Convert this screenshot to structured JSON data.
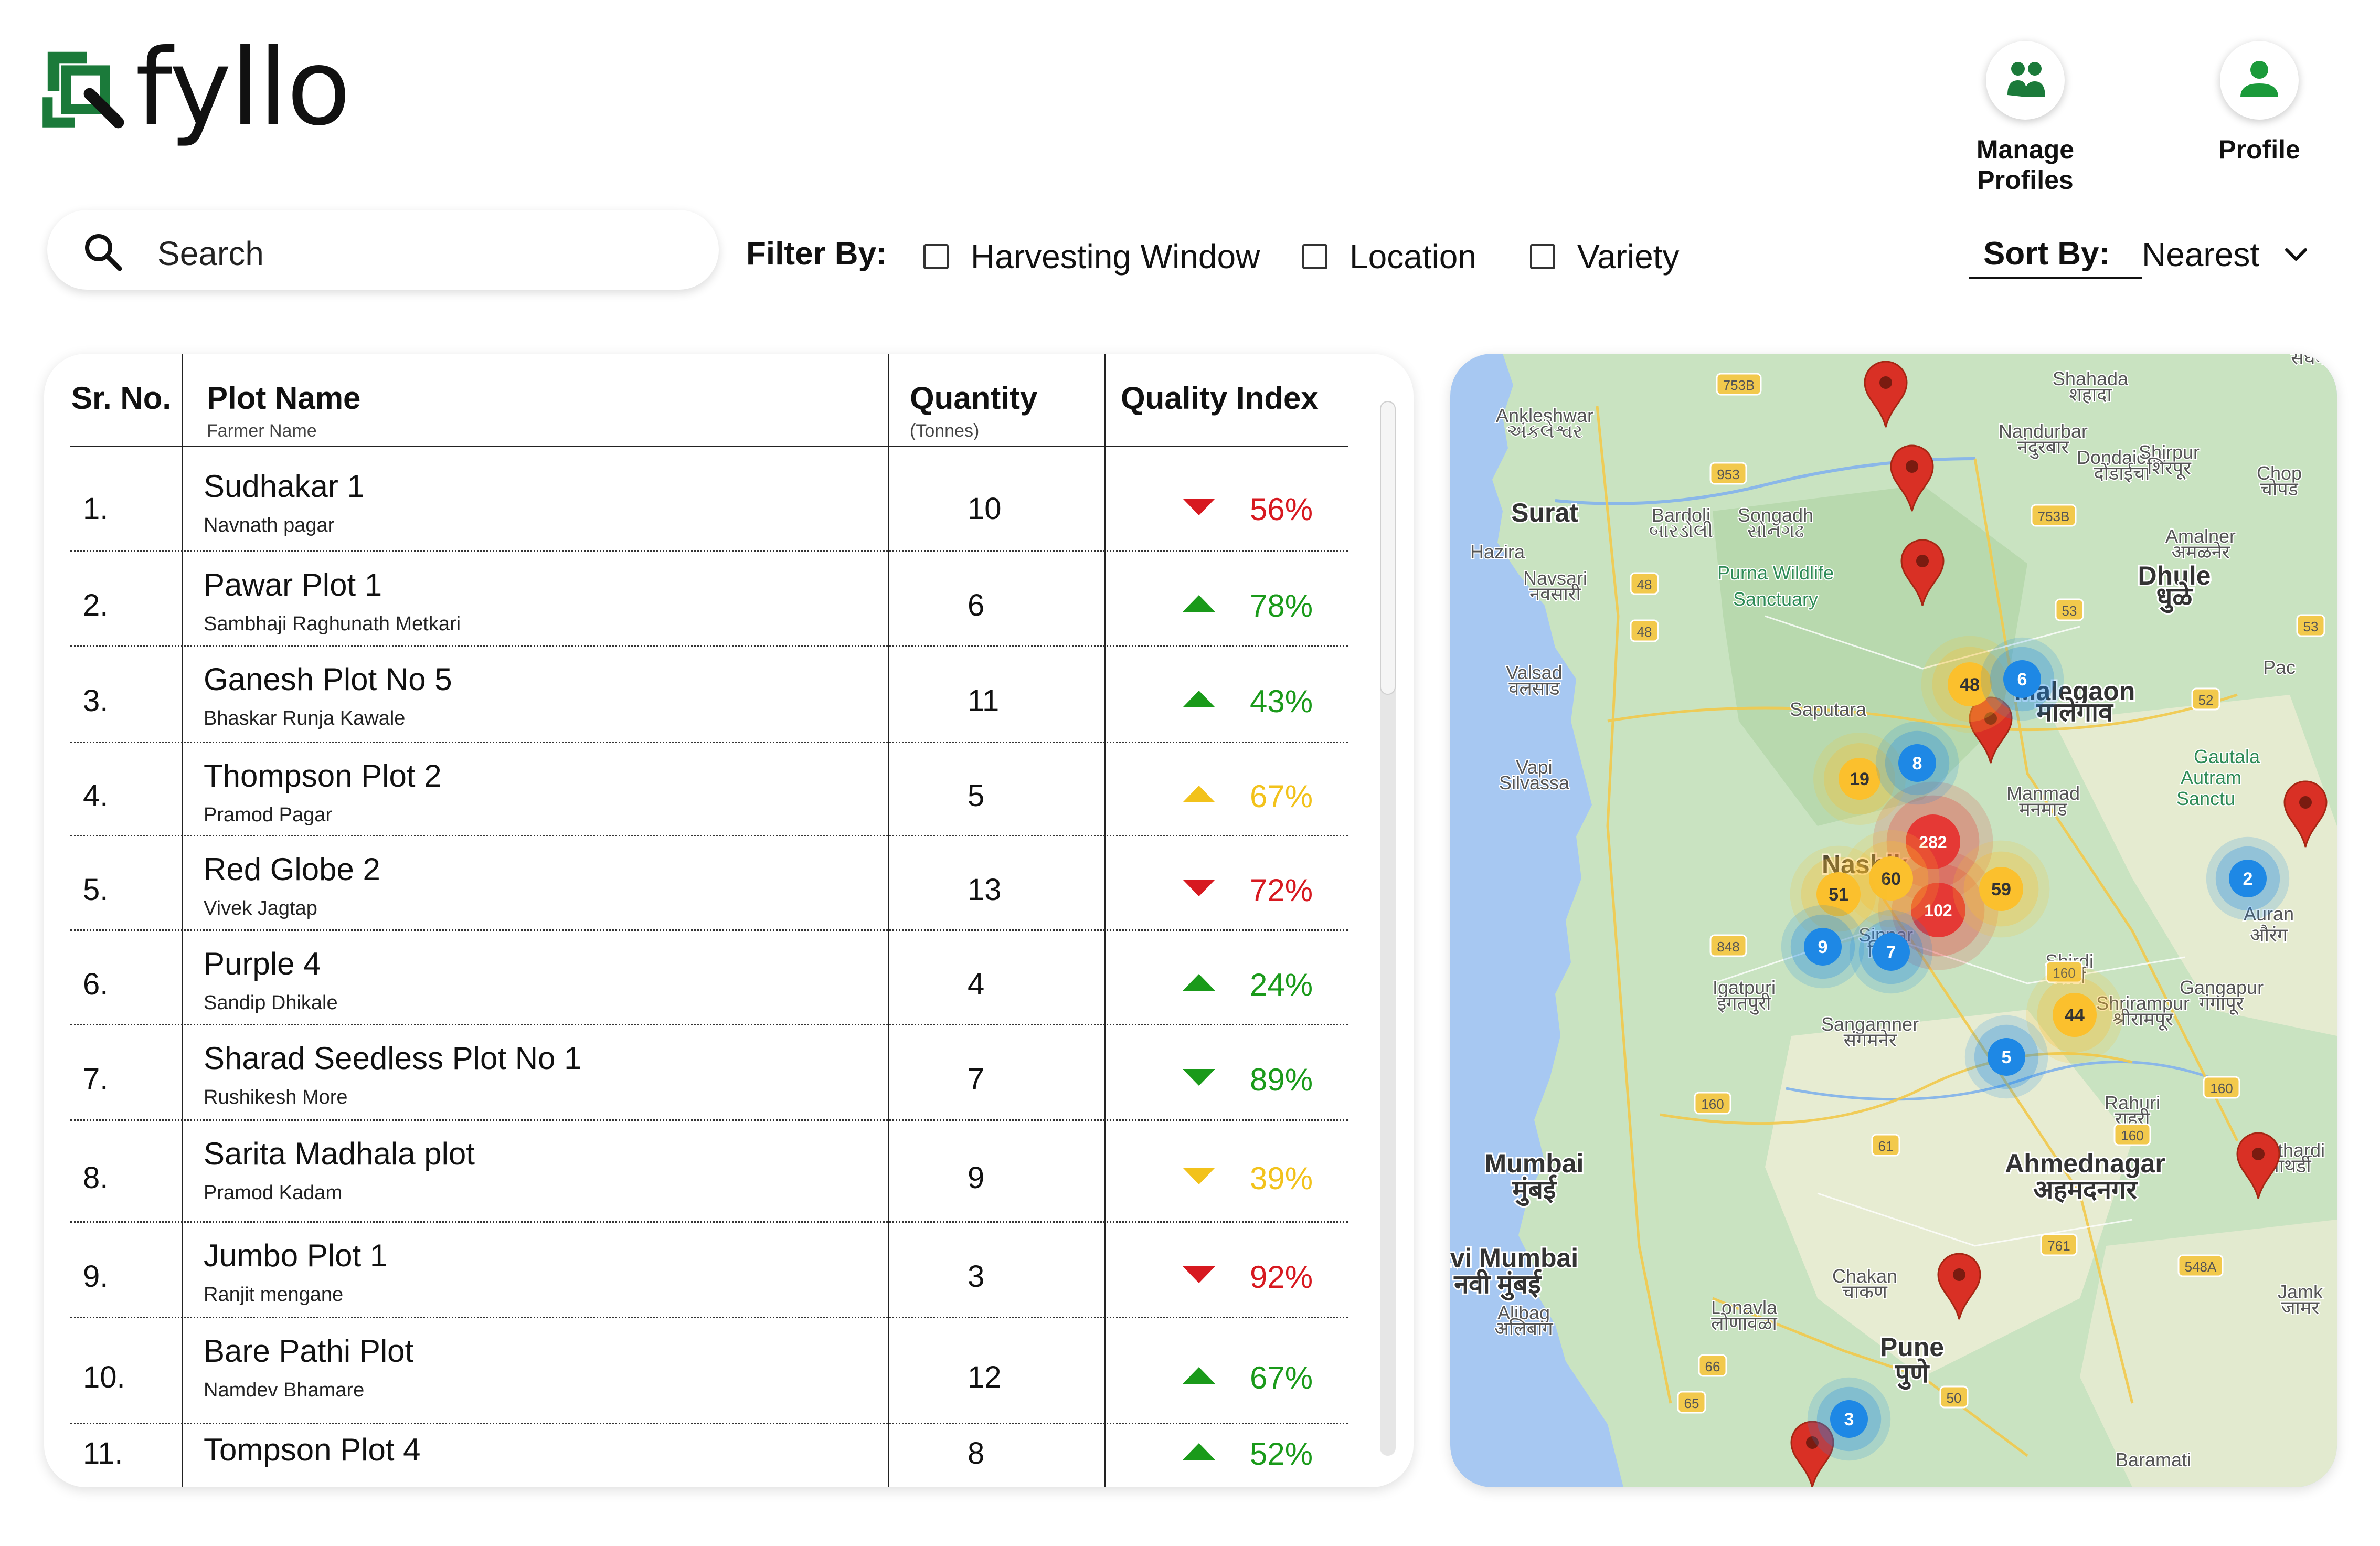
{
  "app": {
    "brand": "fyllo"
  },
  "header": {
    "manage_profiles_label": "Manage Profiles",
    "profile_label": "Profile"
  },
  "toolbar": {
    "search_placeholder": "Search",
    "filter_label": "Filter By:",
    "filters": [
      "Harvesting Window",
      "Location",
      "Variety"
    ],
    "sort_label": "Sort By:",
    "sort_value": "Nearest"
  },
  "table": {
    "columns": {
      "sr": "Sr. No.",
      "plot": "Plot Name",
      "plot_sub": "Farmer Name",
      "qty": "Quantity",
      "qty_sub": "(Tonnes)",
      "quality": "Quality Index"
    },
    "rows": [
      {
        "sr": "1.",
        "plot": "Sudhakar 1",
        "farmer": "Navnath pagar",
        "qty": "10",
        "quality": "56%",
        "trend": "down",
        "color": "#d71920"
      },
      {
        "sr": "2.",
        "plot": "Pawar Plot 1",
        "farmer": "Sambhaji Raghunath Metkari",
        "qty": "6",
        "quality": "78%",
        "trend": "up",
        "color": "#1a9a1a"
      },
      {
        "sr": "3.",
        "plot": "Ganesh Plot No 5",
        "farmer": "Bhaskar Runja Kawale",
        "qty": "11",
        "quality": "43%",
        "trend": "up",
        "color": "#1a9a1a"
      },
      {
        "sr": "4.",
        "plot": "Thompson Plot 2",
        "farmer": "Pramod Pagar",
        "qty": "5",
        "quality": "67%",
        "trend": "up",
        "color": "#f2c21b"
      },
      {
        "sr": "5.",
        "plot": "Red Globe 2",
        "farmer": "Vivek Jagtap",
        "qty": "13",
        "quality": "72%",
        "trend": "down",
        "color": "#d71920"
      },
      {
        "sr": "6.",
        "plot": "Purple 4",
        "farmer": "Sandip Dhikale",
        "qty": "4",
        "quality": "24%",
        "trend": "up",
        "color": "#1a9a1a"
      },
      {
        "sr": "7.",
        "plot": "Sharad Seedless Plot No 1",
        "farmer": "Rushikesh More",
        "qty": "7",
        "quality": "89%",
        "trend": "down",
        "color": "#1a9a1a"
      },
      {
        "sr": "8.",
        "plot": "Sarita Madhala plot",
        "farmer": "Pramod Kadam",
        "qty": "9",
        "quality": "39%",
        "trend": "down",
        "color": "#f2c21b"
      },
      {
        "sr": "9.",
        "plot": "Jumbo Plot 1",
        "farmer": "Ranjit mengane",
        "qty": "3",
        "quality": "92%",
        "trend": "down",
        "color": "#d71920"
      },
      {
        "sr": "10.",
        "plot": "Bare Pathi Plot",
        "farmer": "Namdev Bhamare",
        "qty": "12",
        "quality": "67%",
        "trend": "up",
        "color": "#1a9a1a"
      },
      {
        "sr": "11.",
        "plot": "Tompson Plot 4",
        "farmer": "",
        "qty": "8",
        "quality": "52%",
        "trend": "up",
        "color": "#1a9a1a"
      }
    ]
  },
  "map": {
    "places": [
      {
        "name": "Surat",
        "big": true
      },
      {
        "name": "Navsari"
      },
      {
        "name": "नवसारी"
      },
      {
        "name": "Valsad"
      },
      {
        "name": "वलसाड"
      },
      {
        "name": "Vapi"
      },
      {
        "name": "Silvassa"
      },
      {
        "name": "Hazira"
      },
      {
        "name": "Bardoli"
      },
      {
        "name": "બારડોલી"
      },
      {
        "name": "Ankleshwar"
      },
      {
        "name": "અંકલેશ્વર"
      },
      {
        "name": "Songadh"
      },
      {
        "name": "સોનગઢ"
      },
      {
        "name": "Purna Wildlife"
      },
      {
        "name": "Sanctuary"
      },
      {
        "name": "Saputara"
      },
      {
        "name": "Shahada"
      },
      {
        "name": "शहादा"
      },
      {
        "name": "Nandurbar"
      },
      {
        "name": "नंदुरबार"
      },
      {
        "name": "Dondaicha"
      },
      {
        "name": "दोंडाईचा"
      },
      {
        "name": "Shirpur"
      },
      {
        "name": "शिरपूर"
      },
      {
        "name": "Chop"
      },
      {
        "name": "चोपड"
      },
      {
        "name": "Amalner"
      },
      {
        "name": "अमळनेर"
      },
      {
        "name": "Dhule",
        "big": true
      },
      {
        "name": "धुळे",
        "big": true
      },
      {
        "name": "Malegaon",
        "big": true
      },
      {
        "name": "मालेगाव",
        "big": true
      },
      {
        "name": "Manmad"
      },
      {
        "name": "मनमाड"
      },
      {
        "name": "Gautala"
      },
      {
        "name": "Autram"
      },
      {
        "name": "Sanctu"
      },
      {
        "name": "Pac"
      },
      {
        "name": "Auran"
      },
      {
        "name": "औरंग"
      },
      {
        "name": "Shirdi"
      },
      {
        "name": "शिर्डी"
      },
      {
        "name": "Shrirampur"
      },
      {
        "name": "श्रीरामपूर"
      },
      {
        "name": "Gangapur"
      },
      {
        "name": "गंगापूर"
      },
      {
        "name": "Igatpuri"
      },
      {
        "name": "इगतपुरी"
      },
      {
        "name": "Sangamner"
      },
      {
        "name": "संगमनेर"
      },
      {
        "name": "Sinnar"
      },
      {
        "name": "सिन्नर"
      },
      {
        "name": "Nashik",
        "big": true
      },
      {
        "name": "Rahuri"
      },
      {
        "name": "राहुरी"
      },
      {
        "name": "Pathardi"
      },
      {
        "name": "पाथर्डी"
      },
      {
        "name": "Mumbai",
        "big": true
      },
      {
        "name": "मुंबई",
        "big": true
      },
      {
        "name": "Navi Mumbai",
        "big": true
      },
      {
        "name": "नवी मुंबई",
        "big": true
      },
      {
        "name": "Ahmednagar",
        "big": true
      },
      {
        "name": "अहमदनगर",
        "big": true
      },
      {
        "name": "Alibag"
      },
      {
        "name": "अलिबाग"
      },
      {
        "name": "Lonavla"
      },
      {
        "name": "लोणावळा"
      },
      {
        "name": "Chakan"
      },
      {
        "name": "चाकण"
      },
      {
        "name": "Pune",
        "big": true
      },
      {
        "name": "पुणे",
        "big": true
      },
      {
        "name": "Jamk"
      },
      {
        "name": "जामर"
      },
      {
        "name": "Baramati"
      },
      {
        "name": "सधवा"
      }
    ],
    "clusters": [
      {
        "count": "282",
        "color": "#e53935"
      },
      {
        "count": "102",
        "color": "#e53935"
      },
      {
        "count": "60",
        "color": "#fbc02d"
      },
      {
        "count": "59",
        "color": "#fbc02d"
      },
      {
        "count": "51",
        "color": "#fbc02d"
      },
      {
        "count": "48",
        "color": "#fbc02d"
      },
      {
        "count": "44",
        "color": "#fbc02d"
      },
      {
        "count": "19",
        "color": "#fbc02d"
      },
      {
        "count": "9",
        "color": "#1e88e5"
      },
      {
        "count": "8",
        "color": "#1e88e5"
      },
      {
        "count": "7",
        "color": "#1e88e5"
      },
      {
        "count": "6",
        "color": "#1e88e5"
      },
      {
        "count": "5",
        "color": "#1e88e5"
      },
      {
        "count": "3",
        "color": "#1e88e5"
      },
      {
        "count": "2",
        "color": "#1e88e5"
      }
    ],
    "roads": [
      "753B",
      "953",
      "753B",
      "48",
      "48",
      "53",
      "52",
      "53",
      "848",
      "160",
      "160",
      "160",
      "61",
      "160",
      "761",
      "548A",
      "66",
      "65",
      "50"
    ]
  }
}
